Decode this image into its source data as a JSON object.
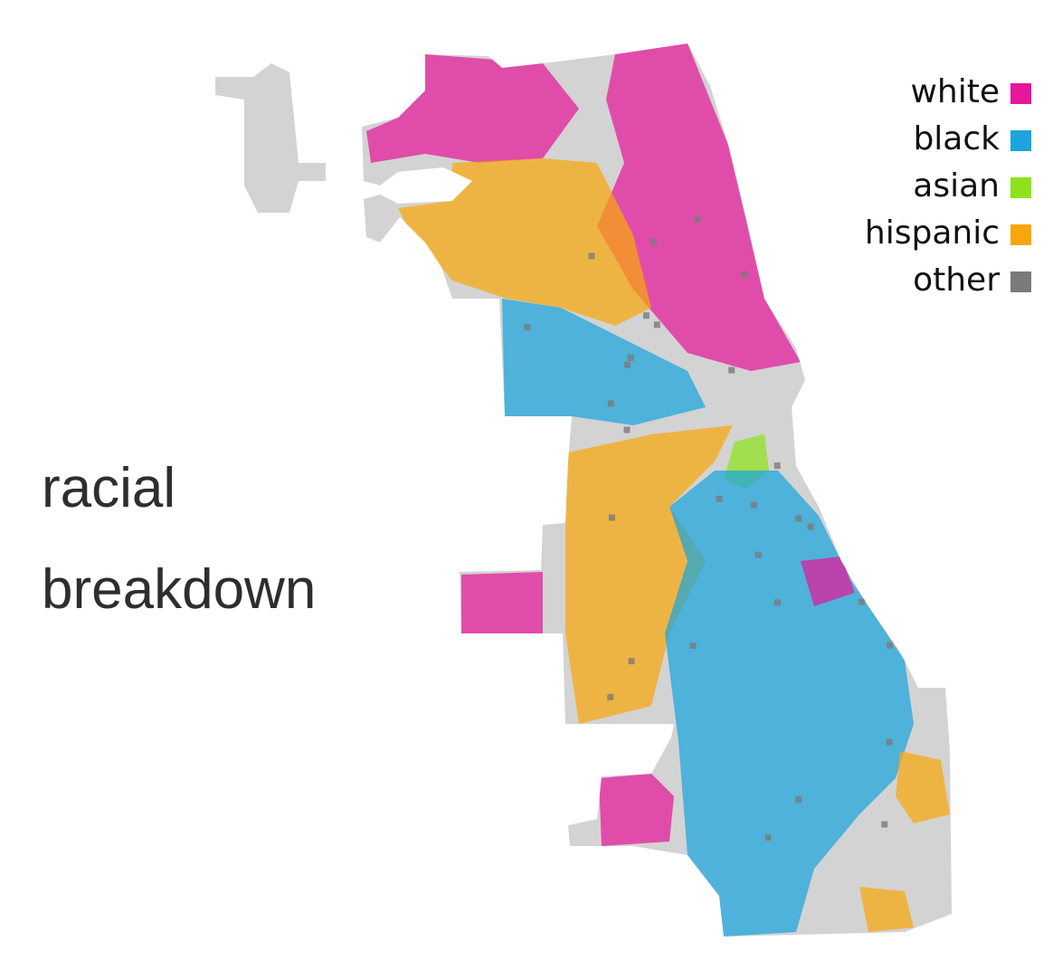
{
  "title": {
    "line1": "racial",
    "line2": "breakdown"
  },
  "legend": [
    {
      "label": "white",
      "color": "#e5179a"
    },
    {
      "label": "black",
      "color": "#1ba5dc"
    },
    {
      "label": "asian",
      "color": "#8ee21d"
    },
    {
      "label": "hispanic",
      "color": "#f8a70b"
    },
    {
      "label": "other",
      "color": "#7a7a7a"
    }
  ]
}
